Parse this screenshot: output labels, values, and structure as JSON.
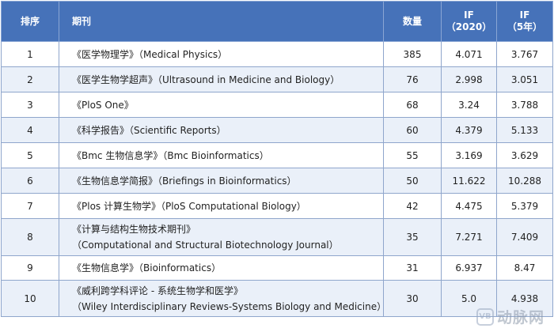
{
  "table": {
    "headers": {
      "rank": "排序",
      "journal": "期刊",
      "count": "数量",
      "if2020_line1": "IF",
      "if2020_line2": "（2020）",
      "if5_line1": "IF",
      "if5_line2": "（5年）"
    },
    "rows": [
      {
        "rank": "1",
        "lines": [
          "《医学物理学》（Medical Physics）"
        ],
        "count": "385",
        "if2020": "4.071",
        "if5": "3.767"
      },
      {
        "rank": "2",
        "lines": [
          "《医学生物学超声》（Ultrasound in Medicine and Biology）"
        ],
        "count": "76",
        "if2020": "2.998",
        "if5": "3.051"
      },
      {
        "rank": "3",
        "lines": [
          "《PloS One》"
        ],
        "count": "68",
        "if2020": "3.24",
        "if5": "3.788"
      },
      {
        "rank": "4",
        "lines": [
          "《科学报告》（Scientific Reports）"
        ],
        "count": "60",
        "if2020": "4.379",
        "if5": "5.133"
      },
      {
        "rank": "5",
        "lines": [
          "《Bmc 生物信息学》（Bmc Bioinformatics）"
        ],
        "count": "55",
        "if2020": "3.169",
        "if5": "3.629"
      },
      {
        "rank": "6",
        "lines": [
          "《生物信息学简报》（Briefings in Bioinformatics）"
        ],
        "count": "50",
        "if2020": "11.622",
        "if5": "10.288"
      },
      {
        "rank": "7",
        "lines": [
          "《Plos 计算生物学》（PloS Computational Biology）"
        ],
        "count": "42",
        "if2020": "4.475",
        "if5": "5.379"
      },
      {
        "rank": "8",
        "lines": [
          "《计算与结构生物技术期刊》",
          "（Computational and Structural Biotechnology Journal）"
        ],
        "count": "35",
        "if2020": "7.271",
        "if5": "7.409"
      },
      {
        "rank": "9",
        "lines": [
          "《生物信息学》（Bioinformatics）"
        ],
        "count": "31",
        "if2020": "6.937",
        "if5": "8.47"
      },
      {
        "rank": "10",
        "lines": [
          "《威利跨学科评论 - 系统生物学和医学》",
          "（Wiley Interdisciplinary Reviews-Systems Biology and Medicine）"
        ],
        "count": "30",
        "if2020": "5.0",
        "if5": "4.938"
      }
    ]
  },
  "watermark": {
    "logo": "VB",
    "text": "动脉网"
  }
}
